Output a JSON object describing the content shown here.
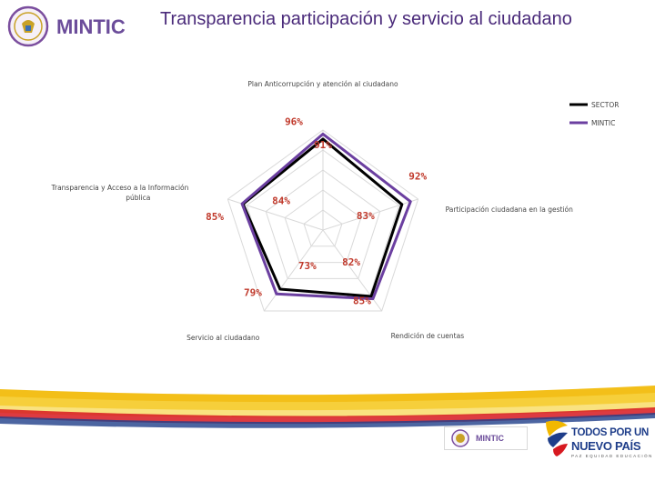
{
  "header": {
    "brand": "MINTIC",
    "title": "Transparencia participación y servicio al ciudadano"
  },
  "chart_data": {
    "type": "radar",
    "axes": [
      "Plan Anticorrupción y atención al ciudadano",
      "Participación ciudadana en la gestión",
      "Rendición de cuentas",
      "Servicio al ciudadano",
      "Transparencia y Acceso a la Información pública"
    ],
    "range": [
      0,
      100
    ],
    "series": [
      {
        "name": "SECTOR",
        "values": [
          91,
          83,
          82,
          73,
          84
        ],
        "labels": [
          "91%",
          "83%",
          "82%",
          "73%",
          "84%"
        ],
        "color": "#000000"
      },
      {
        "name": "MINTIC",
        "values": [
          96,
          92,
          85,
          79,
          85
        ],
        "labels": [
          "96%",
          "92%",
          "85%",
          "79%",
          "85%"
        ],
        "color": "#6b3fa0"
      }
    ],
    "legend": "top-right",
    "grid": true,
    "label_color": "#c0392b"
  },
  "footer": {
    "mini_brand": "MINTIC",
    "gov_line1": "TODOS POR UN",
    "gov_line2": "NUEVO PAÍS",
    "gov_line3": "PAZ   EQUIDAD   EDUCACIÓN"
  },
  "colors": {
    "title": "#4a2a7a",
    "brand_purple": "#6b4c9a",
    "gold": "#f2b800",
    "red": "#d71920",
    "grid": "#d9d9d9"
  }
}
